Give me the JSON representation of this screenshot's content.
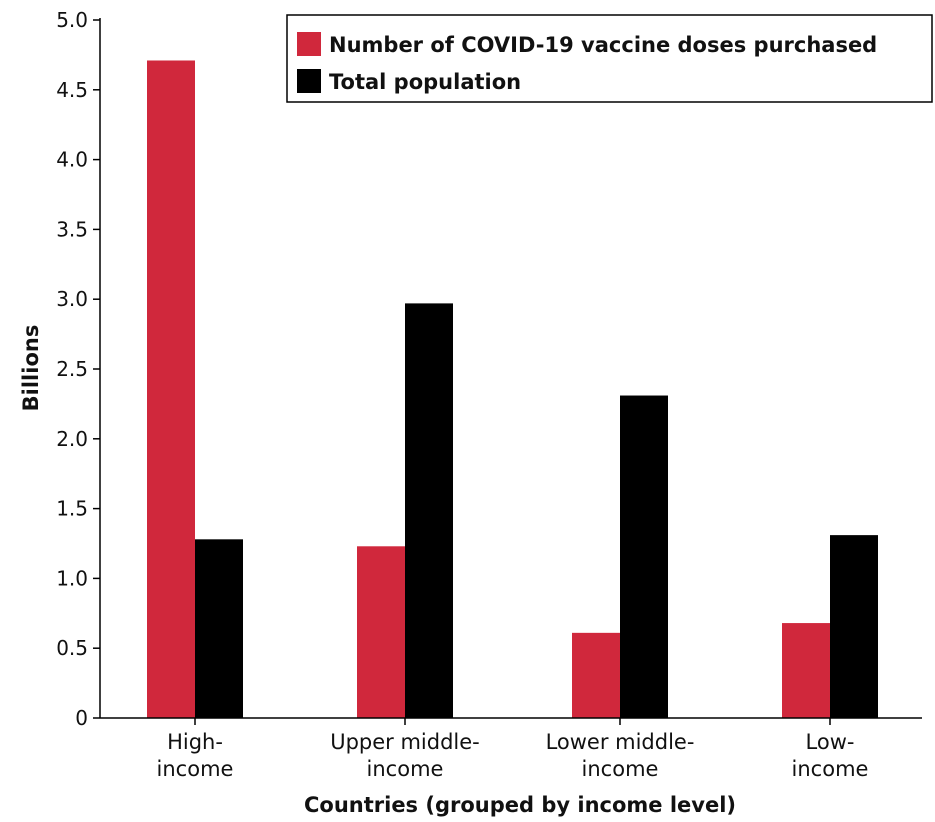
{
  "chart_data": {
    "type": "bar",
    "categories": [
      [
        "High-",
        "income"
      ],
      [
        "Upper middle-",
        "income"
      ],
      [
        "Lower middle-",
        "income"
      ],
      [
        "Low-",
        "income"
      ]
    ],
    "series": [
      {
        "name": "Number of COVID-19 vaccine doses purchased",
        "color": "#d0283c",
        "values": [
          4.71,
          1.23,
          0.61,
          0.68
        ]
      },
      {
        "name": "Total population",
        "color": "#000000",
        "values": [
          1.28,
          2.97,
          2.31,
          1.31
        ]
      }
    ],
    "xlabel": "Countries (grouped by income level)",
    "ylabel": "Billions",
    "ylim": [
      0,
      5.0
    ],
    "yticks": [
      "0",
      "0.5",
      "1.0",
      "1.5",
      "2.0",
      "2.5",
      "3.0",
      "3.5",
      "4.0",
      "4.5",
      "5.0"
    ],
    "legend_position": "top-right",
    "grid": false
  }
}
